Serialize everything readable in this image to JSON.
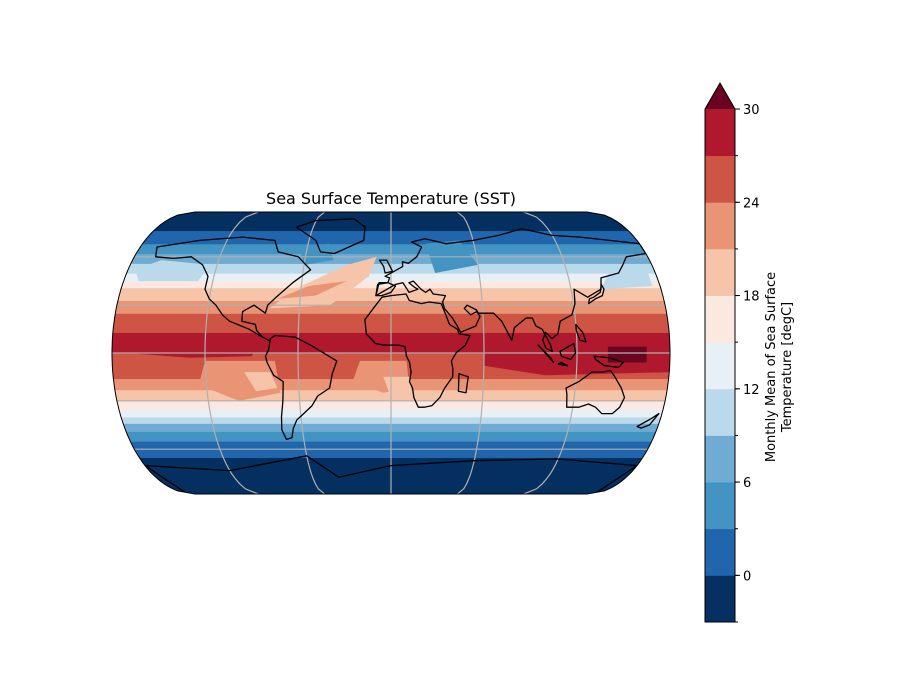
{
  "title": "Sea Surface Temperature (SST)",
  "colorbar": {
    "label_line1": "Monthly Mean of Sea Surface",
    "label_line2": "Temperature [degC]",
    "min": -3,
    "max": 30,
    "extend": "max",
    "levels": [
      -3,
      0,
      3,
      6,
      9,
      12,
      15,
      18,
      21,
      24,
      27,
      30
    ],
    "ticks": [
      0,
      6,
      12,
      18,
      24,
      30
    ],
    "tick_labels": [
      "0",
      "6",
      "12",
      "18",
      "24",
      "30"
    ],
    "colors": [
      "#053061",
      "#2166ac",
      "#4393c3",
      "#6fabd3",
      "#bad9eb",
      "#e9f0f5",
      "#fbe8e1",
      "#f6c4a9",
      "#e89475",
      "#ce5544",
      "#b0182e"
    ],
    "extend_color": "#6a0420"
  },
  "map": {
    "projection": "Robinson",
    "gridlines": true,
    "coastlines": true,
    "central_longitude": 0
  },
  "chart_data": {
    "type": "heatmap",
    "title": "Sea Surface Temperature (SST)",
    "variable": "Monthly Mean of Sea Surface Temperature",
    "units": "degC",
    "range": [
      -3,
      30
    ],
    "levels": [
      -3,
      0,
      3,
      6,
      9,
      12,
      15,
      18,
      21,
      24,
      27,
      30
    ],
    "colorbar_ticks": [
      0,
      6,
      12,
      18,
      24,
      30
    ],
    "zonal_profile": {
      "lat": [
        -80,
        -70,
        -60,
        -50,
        -40,
        -30,
        -20,
        -10,
        0,
        10,
        20,
        30,
        40,
        50,
        60,
        70,
        80
      ],
      "sst": [
        -1.8,
        -1.0,
        1.0,
        5.0,
        12.0,
        18.0,
        22.5,
        26.0,
        27.0,
        27.5,
        26.0,
        22.0,
        18.5,
        12.0,
        7.0,
        2.0,
        -1.5
      ]
    }
  }
}
